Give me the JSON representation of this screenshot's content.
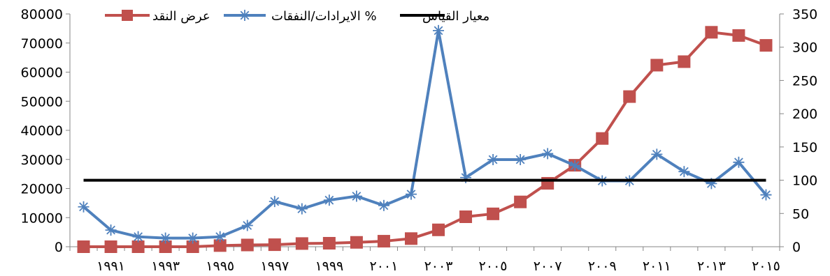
{
  "chart_data": {
    "type": "line",
    "x_labels": [
      "١٩٩١",
      "١٩٩٣",
      "١٩٩٥",
      "١٩٩٧",
      "١٩٩٩",
      "٢٠٠١",
      "٢٠٠٣",
      "٢٠٠٥",
      "٢٠٠٧",
      "٢٠٠٩",
      "٢٠١١",
      "٢٠١٣",
      "٢٠١٥"
    ],
    "x": [
      1990,
      1991,
      1992,
      1993,
      1994,
      1995,
      1996,
      1997,
      1998,
      1999,
      2000,
      2001,
      2002,
      2003,
      2004,
      2005,
      2006,
      2007,
      2008,
      2009,
      2010,
      2011,
      2012,
      2013,
      2014,
      2015
    ],
    "left_axis": {
      "ylim": [
        0,
        80000
      ],
      "ticks": [
        "0",
        "10000",
        "20000",
        "30000",
        "40000",
        "50000",
        "60000",
        "70000",
        "80000"
      ]
    },
    "right_axis": {
      "ylim": [
        0,
        350
      ],
      "ticks": [
        "0",
        "50",
        "100",
        "150",
        "200",
        "250",
        "300",
        "350"
      ]
    },
    "series": [
      {
        "name": "عرض النقد",
        "axis": "left",
        "color": "#c0504d",
        "marker": "square",
        "values": [
          0,
          0,
          0,
          0,
          0,
          400,
          600,
          700,
          1100,
          1200,
          1500,
          1900,
          2800,
          5800,
          10300,
          11300,
          15400,
          21800,
          28000,
          37200,
          51600,
          62400,
          63600,
          73700,
          72600,
          69200
        ]
      },
      {
        "name": "الايرادات/النفقات %",
        "axis": "right",
        "color": "#4f81bd",
        "marker": "asterisk",
        "values": [
          60,
          25,
          15,
          13,
          13,
          15,
          32,
          68,
          57,
          70,
          76,
          62,
          79,
          325,
          104,
          131,
          131,
          140,
          122,
          99,
          99,
          139,
          113,
          95,
          127,
          78
        ]
      },
      {
        "name": "معيار القياس",
        "axis": "right",
        "color": "#000000",
        "marker": "none",
        "values": [
          100,
          100,
          100,
          100,
          100,
          100,
          100,
          100,
          100,
          100,
          100,
          100,
          100,
          100,
          100,
          100,
          100,
          100,
          100,
          100,
          100,
          100,
          100,
          100,
          100,
          100
        ]
      }
    ],
    "legend": "top",
    "grid": false
  }
}
